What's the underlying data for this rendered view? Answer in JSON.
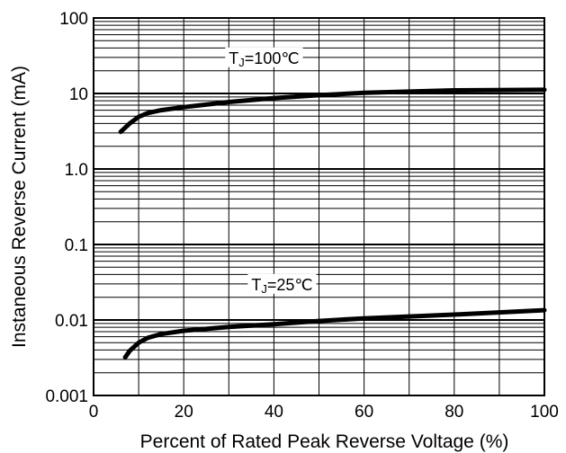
{
  "chart_data": {
    "type": "line",
    "xlabel": "Percent of Rated Peak Reverse Voltage (%)",
    "ylabel": "Instaneous Reverse Current (mA)",
    "xlim": [
      0,
      100
    ],
    "ylim": [
      0.001,
      100
    ],
    "y_scale": "log",
    "grid": true,
    "x_ticks": [
      {
        "value": 0,
        "label": "0"
      },
      {
        "value": 20,
        "label": "20"
      },
      {
        "value": 40,
        "label": "40"
      },
      {
        "value": 60,
        "label": "60"
      },
      {
        "value": 80,
        "label": "80"
      },
      {
        "value": 100,
        "label": "100"
      }
    ],
    "y_ticks": [
      {
        "value": 100,
        "label": "100"
      },
      {
        "value": 10,
        "label": "10"
      },
      {
        "value": 1,
        "label": "1.0"
      },
      {
        "value": 0.1,
        "label": "0.1"
      },
      {
        "value": 0.01,
        "label": "0.01"
      },
      {
        "value": 0.001,
        "label": "0.001"
      }
    ],
    "series": [
      {
        "label_main": "T",
        "label_sub": "J",
        "label_rest": "=100℃",
        "label_at": {
          "x": 30,
          "y": 27
        },
        "x": [
          6,
          8,
          10,
          12,
          15,
          20,
          30,
          40,
          50,
          60,
          80,
          100
        ],
        "y": [
          3.1,
          4.0,
          4.9,
          5.5,
          6.0,
          6.6,
          7.7,
          8.7,
          9.5,
          10.2,
          11.0,
          11.2
        ]
      },
      {
        "label_main": "T",
        "label_sub": "J",
        "label_rest": "=25℃",
        "label_at": {
          "x": 35,
          "y": 0.027
        },
        "x": [
          7,
          8,
          10,
          12,
          15,
          20,
          30,
          40,
          50,
          60,
          80,
          100
        ],
        "y": [
          0.0032,
          0.0039,
          0.005,
          0.0058,
          0.0065,
          0.0072,
          0.0081,
          0.0088,
          0.0097,
          0.0105,
          0.0118,
          0.0135
        ]
      }
    ],
    "colors": {
      "line": "#000000",
      "grid": "#000000",
      "background": "#ffffff"
    }
  }
}
